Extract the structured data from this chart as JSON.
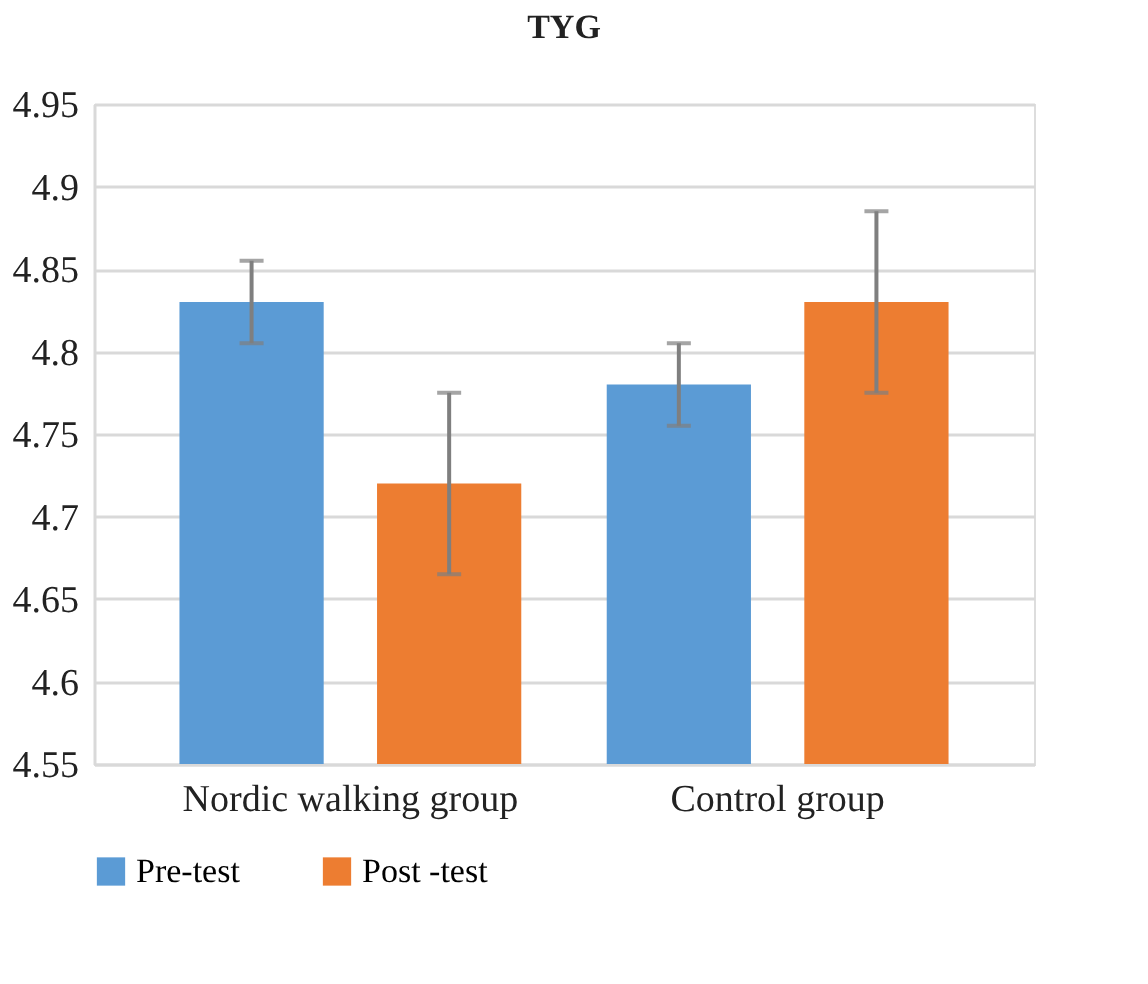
{
  "chart_data": {
    "type": "bar",
    "title": "TYG",
    "categories": [
      "Nordic walking group",
      "Control group"
    ],
    "series": [
      {
        "name": "Pre-test",
        "color": "#5b9bd5",
        "values": [
          4.83,
          4.78
        ],
        "errors": [
          0.025,
          0.025
        ]
      },
      {
        "name": "Post -test",
        "color": "#ed7d31",
        "values": [
          4.72,
          4.83
        ],
        "errors": [
          0.055,
          0.055
        ]
      }
    ],
    "ylim": [
      4.55,
      4.95
    ],
    "yticks": [
      4.55,
      4.6,
      4.65,
      4.7,
      4.75,
      4.8,
      4.85,
      4.9,
      4.95
    ],
    "grid": "y",
    "legend": "bottom"
  }
}
